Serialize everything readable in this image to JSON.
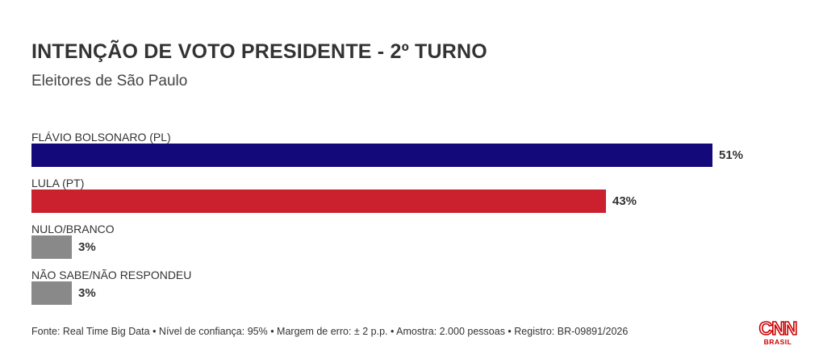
{
  "header": {
    "title": "INTENÇÃO DE VOTO PRESIDENTE - 2º TURNO",
    "subtitle": "Eleitores de São Paulo"
  },
  "chart_data": {
    "type": "bar",
    "orientation": "horizontal",
    "title": "INTENÇÃO DE VOTO PRESIDENTE - 2º TURNO",
    "subtitle": "Eleitores de São Paulo",
    "categories": [
      "FLÁVIO BOLSONARO (PL)",
      "LULA (PT)",
      "NULO/BRANCO",
      "NÃO SABE/NÃO RESPONDEU"
    ],
    "values": [
      51,
      43,
      3,
      3
    ],
    "value_labels": [
      "51%",
      "43%",
      "3%",
      "3%"
    ],
    "colors": [
      "#13097a",
      "#cb202e",
      "#898989",
      "#898989"
    ],
    "xlim": [
      0,
      51
    ],
    "grid": false,
    "legend": "none"
  },
  "footer": {
    "source": "Fonte: Real Time Big Data • Nível de confiança: 95% • Margem de erro: ± 2 p.p. • Amostra: 2.000 pessoas • Registro: BR-09891/2026"
  },
  "logo": {
    "name": "CNN",
    "sub": "BRASIL",
    "color": "#cc0000"
  }
}
